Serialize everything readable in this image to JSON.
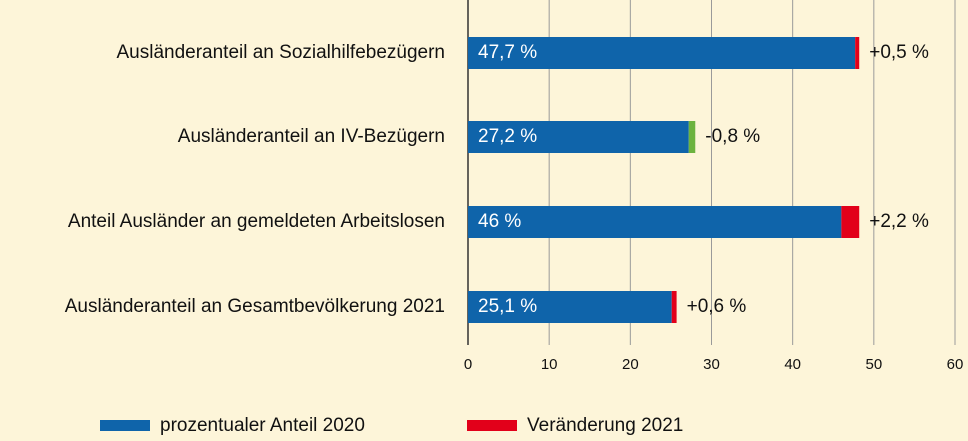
{
  "chart_data": {
    "type": "bar",
    "orientation": "horizontal",
    "stacked": true,
    "categories": [
      "Ausländeranteil an Sozialhilfebezügern",
      "Ausländeranteil an IV-Bezügern",
      "Anteil Ausländer an gemeldeten Arbeitslosen",
      "Ausländeranteil an Gesamtbevölkerung 2021"
    ],
    "series": [
      {
        "name": "prozentualer Anteil 2020",
        "color": "#0f64aa",
        "values": [
          47.7,
          27.2,
          46,
          25.1
        ],
        "value_labels": [
          "47,7 %",
          "27,2 %",
          "46 %",
          "25,1 %"
        ]
      },
      {
        "name": "Veränderung 2021",
        "color": "#e2001a",
        "negative_color": "#6cb33f",
        "values": [
          0.5,
          -0.8,
          2.2,
          0.6
        ],
        "value_labels": [
          "+0,5 %",
          "-0,8 %",
          "+2,2 %",
          "+0,6 %"
        ]
      }
    ],
    "xlim": [
      0,
      60
    ],
    "xticks": [
      0,
      10,
      20,
      30,
      40,
      50,
      60
    ],
    "grid": true
  }
}
